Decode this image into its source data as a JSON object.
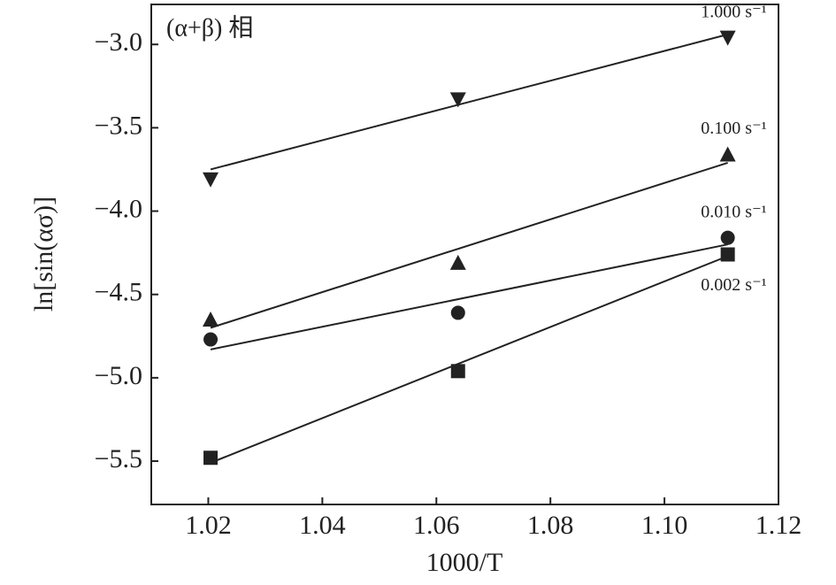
{
  "chart_data": {
    "type": "scatter",
    "annotation": "(α+β) 相",
    "x_label": "1000/T",
    "y_label": "ln[sin(ασ)]",
    "x": [
      1.0204,
      1.0638,
      1.1111
    ],
    "series": [
      {
        "name": "1.000 s⁻¹",
        "color": "#222222",
        "marker": "triangle-down",
        "values": [
          -3.81,
          -3.33,
          -2.96
        ],
        "fit": [
          -3.75,
          -2.94
        ]
      },
      {
        "name": "0.100 s⁻¹",
        "color": "#222222",
        "marker": "triangle-up",
        "values": [
          -4.65,
          -4.31,
          -3.66
        ],
        "fit": [
          -4.7,
          -3.71
        ]
      },
      {
        "name": "0.010 s⁻¹",
        "color": "#222222",
        "marker": "circle",
        "values": [
          -4.77,
          -4.61,
          -4.16
        ],
        "fit": [
          -4.83,
          -4.2
        ]
      },
      {
        "name": "0.002 s⁻¹",
        "color": "#222222",
        "marker": "square",
        "values": [
          -5.48,
          -4.96,
          -4.26
        ],
        "fit": [
          -5.51,
          -4.27
        ]
      }
    ],
    "xlim": [
      1.01,
      1.12
    ],
    "xticks": [
      {
        "value": 1.02,
        "label": "1.02"
      },
      {
        "value": 1.04,
        "label": "1.04"
      },
      {
        "value": 1.06,
        "label": "1.06"
      },
      {
        "value": 1.08,
        "label": "1.08"
      },
      {
        "value": 1.1,
        "label": "1.10"
      },
      {
        "value": 1.12,
        "label": "1.12"
      }
    ],
    "ylim": [
      -5.76,
      -2.76
    ],
    "yticks": [
      {
        "value": -3.0,
        "label": "−3.0"
      },
      {
        "value": -3.5,
        "label": "−3.5"
      },
      {
        "value": -4.0,
        "label": "−4.0"
      },
      {
        "value": -4.5,
        "label": "−4.5"
      },
      {
        "value": -5.0,
        "label": "−5.0"
      },
      {
        "value": -5.5,
        "label": "−5.5"
      }
    ]
  }
}
